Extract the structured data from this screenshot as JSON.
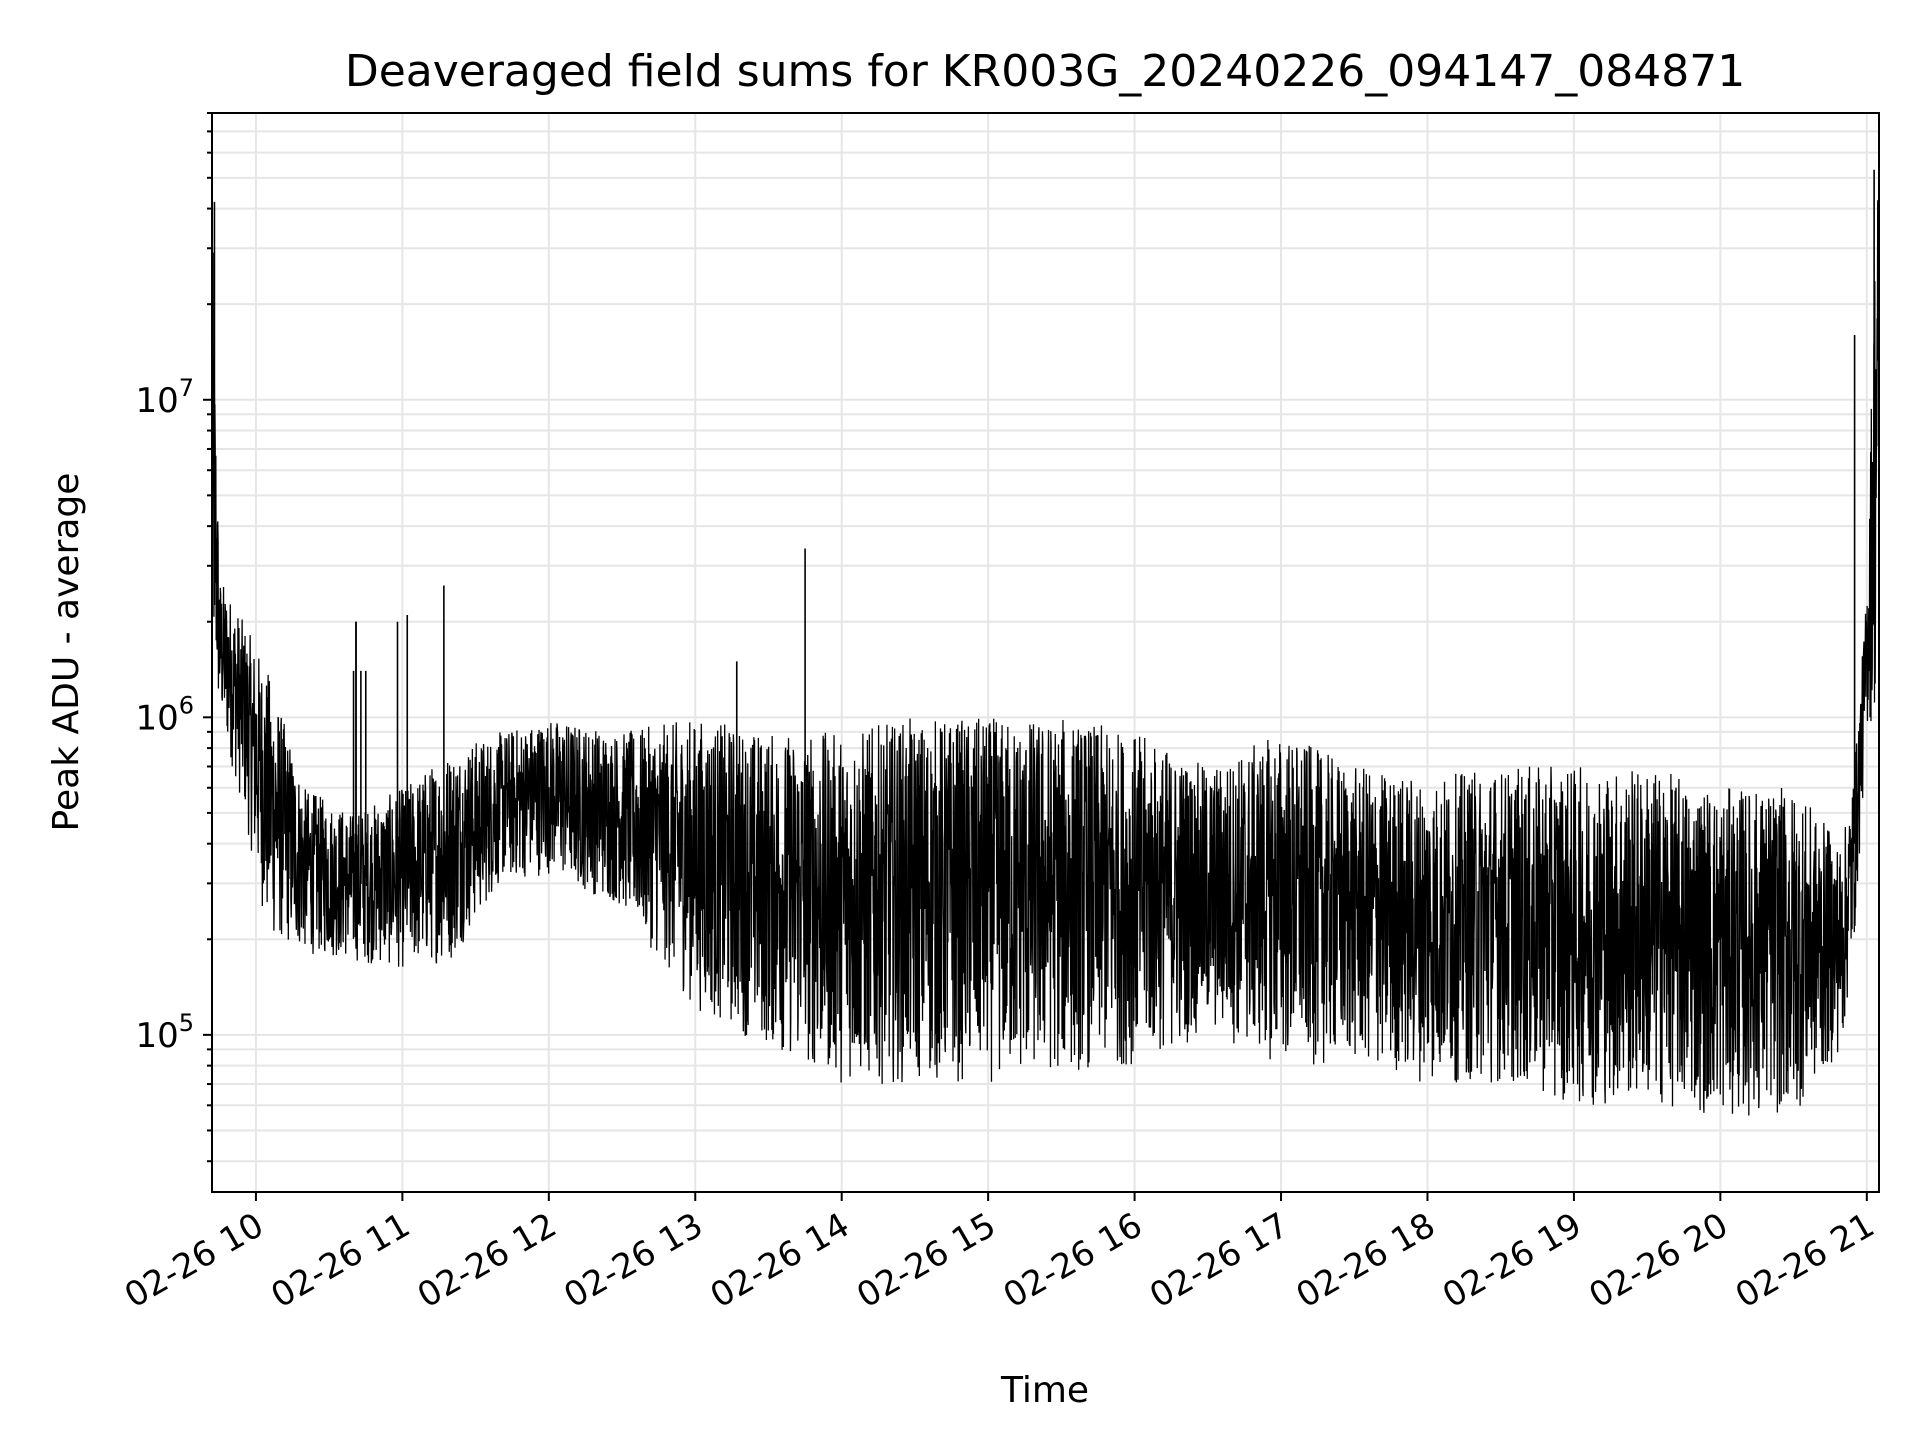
{
  "chart_data": {
    "type": "line",
    "title": "Deaveraged field sums for KR003G_20240226_094147_084871",
    "xlabel": "Time",
    "ylabel": "Peak ADU - average",
    "yscale": "log",
    "grid": true,
    "line_color": "#000000",
    "grid_color": "#e6e6e6",
    "xlim": [
      "2024-02-26 09:42",
      "2024-02-26 21:05"
    ],
    "ylim": [
      32000,
      80000000
    ],
    "x_ticks": [
      {
        "label": "02-26 10",
        "value": "2024-02-26 10:00"
      },
      {
        "label": "02-26 11",
        "value": "2024-02-26 11:00"
      },
      {
        "label": "02-26 12",
        "value": "2024-02-26 12:00"
      },
      {
        "label": "02-26 13",
        "value": "2024-02-26 13:00"
      },
      {
        "label": "02-26 14",
        "value": "2024-02-26 14:00"
      },
      {
        "label": "02-26 15",
        "value": "2024-02-26 15:00"
      },
      {
        "label": "02-26 16",
        "value": "2024-02-26 16:00"
      },
      {
        "label": "02-26 17",
        "value": "2024-02-26 17:00"
      },
      {
        "label": "02-26 18",
        "value": "2024-02-26 18:00"
      },
      {
        "label": "02-26 19",
        "value": "2024-02-26 19:00"
      },
      {
        "label": "02-26 20",
        "value": "2024-02-26 20:00"
      },
      {
        "label": "02-26 21",
        "value": "2024-02-26 21:00"
      }
    ],
    "y_ticks": [
      {
        "base": "10",
        "exp": "5",
        "value": 100000
      },
      {
        "base": "10",
        "exp": "6",
        "value": 1000000
      },
      {
        "base": "10",
        "exp": "7",
        "value": 10000000
      }
    ],
    "envelope_note_free": true,
    "series": [
      {
        "x": [
          "2024-02-26 09:42",
          "2024-02-26 09:45",
          "2024-02-26 09:55",
          "2024-02-26 10:05",
          "2024-02-26 10:20",
          "2024-02-26 10:40",
          "2024-02-26 11:00",
          "2024-02-26 11:20",
          "2024-02-26 11:40",
          "2024-02-26 12:00",
          "2024-02-26 12:30",
          "2024-02-26 13:00",
          "2024-02-26 13:30",
          "2024-02-26 14:00",
          "2024-02-26 14:30",
          "2024-02-26 15:00",
          "2024-02-26 15:30",
          "2024-02-26 16:00",
          "2024-02-26 16:30",
          "2024-02-26 17:00",
          "2024-02-26 17:30",
          "2024-02-26 18:00",
          "2024-02-26 18:30",
          "2024-02-26 19:00",
          "2024-02-26 19:30",
          "2024-02-26 20:00",
          "2024-02-26 20:30",
          "2024-02-26 20:50",
          "2024-02-26 20:55",
          "2024-02-26 21:00",
          "2024-02-26 21:04"
        ],
        "low": [
          1200000,
          1000000,
          500000,
          200000,
          180000,
          170000,
          160000,
          170000,
          300000,
          320000,
          250000,
          120000,
          90000,
          70000,
          70000,
          70000,
          75000,
          80000,
          100000,
          80000,
          80000,
          70000,
          70000,
          60000,
          60000,
          55000,
          55000,
          90000,
          200000,
          900000,
          1000000
        ],
        "high": [
          42000000,
          2800000,
          2000000,
          1400000,
          600000,
          500000,
          600000,
          800000,
          900000,
          1000000,
          900000,
          1000000,
          900000,
          900000,
          1000000,
          1000000,
          1000000,
          900000,
          700000,
          900000,
          700000,
          650000,
          700000,
          700000,
          700000,
          600000,
          600000,
          400000,
          700000,
          2500000,
          56000000
        ]
      }
    ],
    "spikes": [
      {
        "x": "2024-02-26 09:43",
        "y": 42000000
      },
      {
        "x": "2024-02-26 10:40",
        "y": 1400000
      },
      {
        "x": "2024-02-26 10:45",
        "y": 1400000
      },
      {
        "x": "2024-02-26 10:43",
        "y": 1400000
      },
      {
        "x": "2024-02-26 10:41",
        "y": 2000000
      },
      {
        "x": "2024-02-26 10:41",
        "y": 2000000
      },
      {
        "x": "2024-02-26 10:58",
        "y": 2000000
      },
      {
        "x": "2024-02-26 11:02",
        "y": 2100000
      },
      {
        "x": "2024-02-26 11:17",
        "y": 2600000
      },
      {
        "x": "2024-02-26 13:17",
        "y": 1500000
      },
      {
        "x": "2024-02-26 13:45",
        "y": 3400000
      },
      {
        "x": "2024-02-26 20:55",
        "y": 16000000
      },
      {
        "x": "2024-02-26 21:03",
        "y": 53000000
      }
    ]
  }
}
